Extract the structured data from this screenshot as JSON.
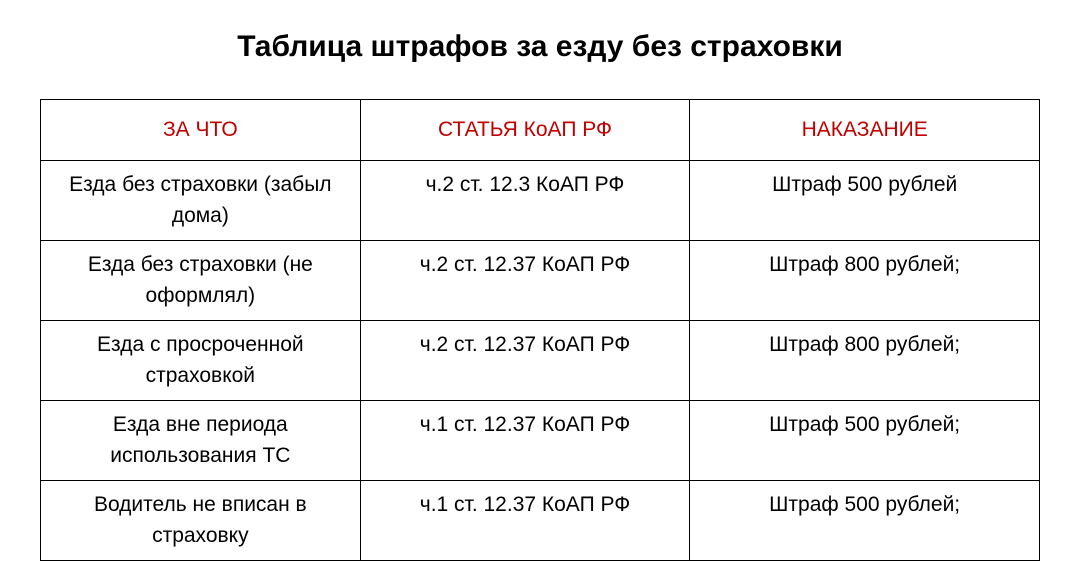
{
  "title": "Таблица штрафов за езду без страховки",
  "table": {
    "headers": {
      "col1": "ЗА ЧТО",
      "col2": "СТАТЬЯ КоАП РФ",
      "col3": "НАКАЗАНИЕ"
    },
    "rows": [
      {
        "reason": "Езда без страховки (забыл дома)",
        "article": "ч.2 ст. 12.3 КоАП РФ",
        "penalty": "Штраф 500 рублей"
      },
      {
        "reason": "Езда без страховки (не оформлял)",
        "article": "ч.2 ст. 12.37 КоАП РФ",
        "penalty": "Штраф 800 рублей;"
      },
      {
        "reason": "Езда с просроченной страховкой",
        "article": "ч.2 ст. 12.37 КоАП РФ",
        "penalty": "Штраф 800 рублей;"
      },
      {
        "reason": "Езда вне периода использования ТС",
        "article": "ч.1 ст. 12.37 КоАП РФ",
        "penalty": "Штраф 500 рублей;"
      },
      {
        "reason": "Водитель не вписан в страховку",
        "article": "ч.1 ст. 12.37 КоАП РФ",
        "penalty": "Штраф 500 рублей;"
      }
    ]
  },
  "styling": {
    "background_color": "#ffffff",
    "title_color": "#000000",
    "title_fontsize": 30,
    "header_text_color": "#c00000",
    "cell_text_color": "#000000",
    "border_color": "#000000",
    "cell_fontsize": 21,
    "font_family": "Arial"
  }
}
